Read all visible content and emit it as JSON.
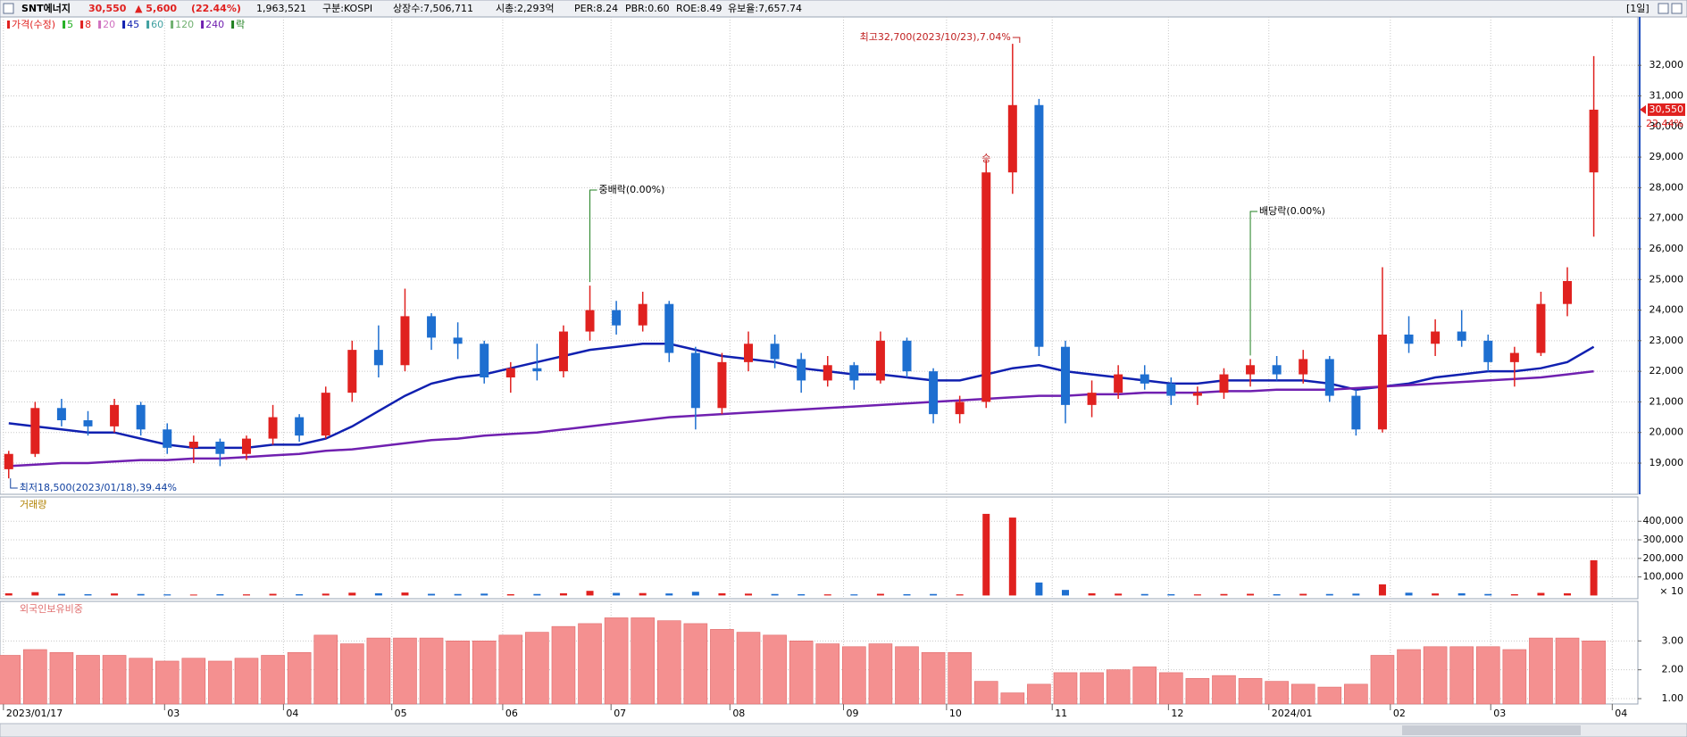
{
  "header": {
    "name": "SNT에너지",
    "close": "30,550",
    "change": "▲ 5,600",
    "change_pct": "(22.44%)",
    "volume": "1,963,521",
    "market": "구분:KOSPI",
    "shares": "상장수:7,506,711",
    "cap": "시총:2,293억",
    "per": "PER:8.24",
    "pbr": "PBR:0.60",
    "roe": "ROE:8.49",
    "reserve": "유보율:7,657.74",
    "period": "[1일]"
  },
  "chart_data": [
    {
      "type": "candlestick",
      "legend": [
        {
          "name": "가격(수정)",
          "color": "#e0211f"
        },
        {
          "name": "5",
          "color": "#22b022"
        },
        {
          "name": "8",
          "color": "#e0211f"
        },
        {
          "name": "20",
          "color": "#d070c0"
        },
        {
          "name": "45",
          "color": "#1020b0"
        },
        {
          "name": "60",
          "color": "#40a0a0"
        },
        {
          "name": "120",
          "color": "#70b070"
        },
        {
          "name": "240",
          "color": "#7020b0"
        },
        {
          "name": "락",
          "color": "#208020"
        }
      ],
      "up_color": "#e0211f",
      "down_color": "#1e6fd0",
      "open": [
        18800,
        19300,
        20800,
        20400,
        20200,
        20900,
        20100,
        19500,
        19700,
        19300,
        19800,
        20500,
        19900,
        21300,
        22700,
        22200,
        23800,
        23100,
        22900,
        21800,
        22100,
        22000,
        23300,
        24000,
        23500,
        24200,
        22600,
        20800,
        22300,
        22900,
        22400,
        21700,
        22200,
        21700,
        23000,
        22000,
        20600,
        21000,
        28500,
        30700,
        22800,
        20900,
        21300,
        21900,
        21600,
        21200,
        21300,
        21900,
        22200,
        21900,
        22400,
        21200,
        20100,
        23200,
        22900,
        23300,
        23000,
        22300,
        22600,
        24200,
        28500
      ],
      "high": [
        19400,
        21000,
        21100,
        20700,
        21100,
        21000,
        20300,
        19900,
        19800,
        19900,
        20900,
        20600,
        21500,
        23000,
        23500,
        24700,
        23900,
        23600,
        23000,
        22300,
        22900,
        23500,
        24800,
        24300,
        24600,
        24300,
        22800,
        22600,
        23300,
        23200,
        22600,
        22500,
        22300,
        23300,
        23100,
        22100,
        21200,
        28900,
        32700,
        30900,
        23000,
        21700,
        22200,
        22200,
        21800,
        21500,
        22100,
        22400,
        22500,
        22700,
        22500,
        21400,
        25400,
        23800,
        23700,
        24000,
        23200,
        22800,
        24600,
        25400,
        32300
      ],
      "low": [
        18500,
        19200,
        20200,
        19900,
        20000,
        19900,
        19300,
        19000,
        18900,
        19100,
        19600,
        19700,
        19800,
        21000,
        21800,
        22000,
        22700,
        22400,
        21600,
        21300,
        21700,
        21800,
        23000,
        23200,
        23300,
        22300,
        20100,
        20600,
        22000,
        22100,
        21300,
        21500,
        21400,
        21600,
        21800,
        20300,
        20300,
        20800,
        27800,
        22500,
        20300,
        20500,
        21100,
        21400,
        20900,
        20900,
        21100,
        21500,
        21700,
        21600,
        21000,
        19900,
        20000,
        22600,
        22500,
        22800,
        22000,
        21500,
        22500,
        23800,
        26400
      ],
      "close": [
        19300,
        20800,
        20400,
        20200,
        20900,
        20100,
        19500,
        19700,
        19300,
        19800,
        20500,
        19900,
        21300,
        22700,
        22200,
        23800,
        23100,
        22900,
        21800,
        22100,
        22000,
        23300,
        24000,
        23500,
        24200,
        22600,
        20800,
        22300,
        22900,
        22400,
        21700,
        22200,
        21700,
        23000,
        22000,
        20600,
        21000,
        28500,
        30700,
        22800,
        20900,
        21300,
        21900,
        21600,
        21200,
        21300,
        21900,
        22200,
        21900,
        22400,
        21200,
        20100,
        23200,
        22900,
        23300,
        23000,
        22300,
        22600,
        24200,
        24950,
        30550
      ],
      "series": [
        {
          "name": "45",
          "color": "#1020b0",
          "values": [
            20300,
            20200,
            20100,
            20000,
            20000,
            19800,
            19600,
            19500,
            19500,
            19500,
            19600,
            19600,
            19800,
            20200,
            20700,
            21200,
            21600,
            21800,
            21900,
            22100,
            22300,
            22500,
            22700,
            22800,
            22900,
            22900,
            22700,
            22500,
            22400,
            22300,
            22100,
            22000,
            21900,
            21900,
            21800,
            21700,
            21700,
            21900,
            22100,
            22200,
            22000,
            21900,
            21800,
            21700,
            21600,
            21600,
            21700,
            21700,
            21700,
            21700,
            21600,
            21400,
            21500,
            21600,
            21800,
            21900,
            22000,
            22000,
            22100,
            22300,
            22800
          ]
        },
        {
          "name": "240",
          "color": "#7020b0",
          "values": [
            18900,
            18950,
            19000,
            19000,
            19050,
            19100,
            19100,
            19150,
            19150,
            19200,
            19250,
            19300,
            19400,
            19450,
            19550,
            19650,
            19750,
            19800,
            19900,
            19950,
            20000,
            20100,
            20200,
            20300,
            20400,
            20500,
            20550,
            20600,
            20650,
            20700,
            20750,
            20800,
            20850,
            20900,
            20950,
            21000,
            21050,
            21100,
            21150,
            21200,
            21200,
            21250,
            21250,
            21300,
            21300,
            21300,
            21350,
            21350,
            21400,
            21400,
            21400,
            21450,
            21500,
            21550,
            21600,
            21650,
            21700,
            21750,
            21800,
            21900,
            22000
          ]
        }
      ],
      "xlim": [
        -0.33,
        61.67
      ],
      "ylim": [
        17980,
        33580
      ],
      "yticks": [
        {
          "value": 19000,
          "label": "19,000"
        },
        {
          "value": 20000,
          "label": "20,000"
        },
        {
          "value": 21000,
          "label": "21,000"
        },
        {
          "value": 22000,
          "label": "22,000"
        },
        {
          "value": 23000,
          "label": "23,000"
        },
        {
          "value": 24000,
          "label": "24,000"
        },
        {
          "value": 25000,
          "label": "25,000"
        },
        {
          "value": 26000,
          "label": "26,000"
        },
        {
          "value": 27000,
          "label": "27,000"
        },
        {
          "value": 28000,
          "label": "28,000"
        },
        {
          "value": 29000,
          "label": "29,000"
        },
        {
          "value": 30000,
          "label": "30,000"
        },
        {
          "value": 31000,
          "label": "31,000"
        },
        {
          "value": 32000,
          "label": "32,000"
        }
      ],
      "grid": true,
      "annotations": {
        "max": "최고32,700(2023/10/23),7.04%",
        "min": "최저18,500(2023/01/18),39.44%",
        "split": "중배락(0.00%)",
        "dividend": "배당락(0.00%)",
        "mark": "승",
        "axis_pct": "22.44%"
      }
    },
    {
      "type": "bar",
      "title": "거래량",
      "unit": "× 10",
      "values": [
        12000,
        18000,
        9000,
        7000,
        11000,
        8000,
        6000,
        5000,
        7000,
        6000,
        9000,
        7000,
        10000,
        15000,
        12000,
        16000,
        9000,
        8000,
        10000,
        7000,
        8000,
        12000,
        25000,
        14000,
        13000,
        11000,
        20000,
        12000,
        10000,
        8000,
        7000,
        6000,
        6000,
        9000,
        7000,
        8000,
        6000,
        440000,
        420000,
        70000,
        30000,
        12000,
        10000,
        8000,
        7000,
        6000,
        8000,
        9000,
        7000,
        9000,
        8000,
        10000,
        60000,
        15000,
        11000,
        12000,
        8000,
        7000,
        14000,
        12000,
        190000
      ],
      "xlim": [
        -0.33,
        61.67
      ],
      "ylim": [
        -17300,
        531000
      ],
      "yticks": [
        {
          "value": 100000,
          "label": "100,000"
        },
        {
          "value": 200000,
          "label": "200,000"
        },
        {
          "value": 300000,
          "label": "300,000"
        },
        {
          "value": 400000,
          "label": "400,000"
        }
      ],
      "grid": true
    },
    {
      "type": "bar",
      "title": "외국인보유비중",
      "color": "#f49090",
      "values": [
        2.5,
        2.7,
        2.6,
        2.5,
        2.5,
        2.4,
        2.3,
        2.4,
        2.3,
        2.4,
        2.5,
        2.6,
        3.2,
        2.9,
        3.1,
        3.1,
        3.1,
        3.0,
        3.0,
        3.2,
        3.3,
        3.5,
        3.6,
        3.8,
        3.8,
        3.7,
        3.6,
        3.4,
        3.3,
        3.2,
        3.0,
        2.9,
        2.8,
        2.9,
        2.8,
        2.6,
        2.6,
        1.6,
        1.2,
        1.5,
        1.9,
        1.9,
        2.0,
        2.1,
        1.9,
        1.7,
        1.8,
        1.7,
        1.6,
        1.5,
        1.4,
        1.5,
        2.5,
        2.7,
        2.8,
        2.8,
        2.8,
        2.7,
        3.1,
        3.1,
        3.0
      ],
      "xlim": [
        -0.33,
        61.67
      ],
      "ylim": [
        0.815,
        4.37
      ],
      "yticks": [
        {
          "value": 1,
          "label": "1.00"
        },
        {
          "value": 2,
          "label": "2.00"
        },
        {
          "value": 3,
          "label": "3.00"
        }
      ],
      "xticks": [
        {
          "value": -0.2,
          "label": "2023/01/17"
        },
        {
          "value": 5.9,
          "label": "03"
        },
        {
          "value": 10.4,
          "label": "04"
        },
        {
          "value": 14.5,
          "label": "05"
        },
        {
          "value": 18.7,
          "label": "06"
        },
        {
          "value": 22.8,
          "label": "07"
        },
        {
          "value": 27.3,
          "label": "08"
        },
        {
          "value": 31.6,
          "label": "09"
        },
        {
          "value": 35.5,
          "label": "10"
        },
        {
          "value": 39.5,
          "label": "11"
        },
        {
          "value": 43.9,
          "label": "12"
        },
        {
          "value": 47.7,
          "label": "2024/01"
        },
        {
          "value": 52.3,
          "label": "02"
        },
        {
          "value": 56.1,
          "label": "03"
        },
        {
          "value": 60.7,
          "label": "04"
        }
      ],
      "grid": true
    }
  ]
}
